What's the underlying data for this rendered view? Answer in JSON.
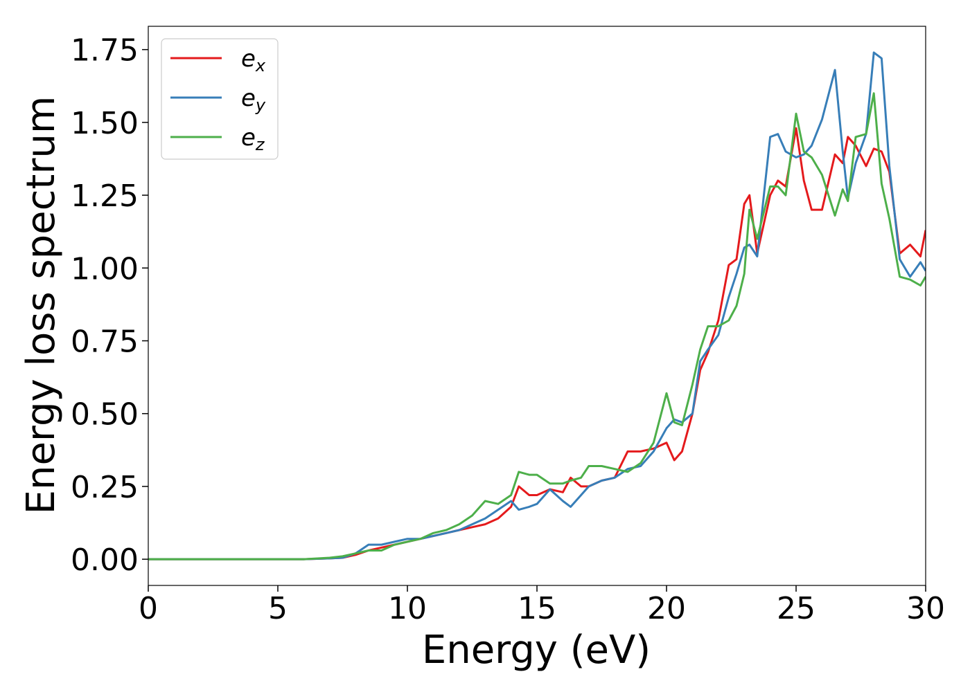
{
  "chart_data": {
    "type": "line",
    "xlabel": "Energy (eV)",
    "ylabel": "Energy loss spectrum",
    "xlim": [
      0,
      30
    ],
    "ylim": [
      -0.09,
      1.83
    ],
    "xticks": [
      "0",
      "5",
      "10",
      "15",
      "20",
      "25",
      "30"
    ],
    "yticks": [
      "0.00",
      "0.25",
      "0.50",
      "0.75",
      "1.00",
      "1.25",
      "1.50",
      "1.75"
    ],
    "grid": false,
    "legend_position": "upper-left",
    "series": [
      {
        "name": "e",
        "subscript": "x",
        "color": "#e41a1c",
        "points": [
          [
            0,
            0
          ],
          [
            6,
            0
          ],
          [
            7,
            0.003
          ],
          [
            7.5,
            0.005
          ],
          [
            8,
            0.015
          ],
          [
            8.5,
            0.03
          ],
          [
            9,
            0.04
          ],
          [
            9.5,
            0.05
          ],
          [
            10,
            0.06
          ],
          [
            10.5,
            0.07
          ],
          [
            11,
            0.08
          ],
          [
            11.5,
            0.09
          ],
          [
            12,
            0.1
          ],
          [
            12.5,
            0.11
          ],
          [
            13,
            0.12
          ],
          [
            13.5,
            0.14
          ],
          [
            14,
            0.18
          ],
          [
            14.3,
            0.25
          ],
          [
            14.7,
            0.22
          ],
          [
            15,
            0.22
          ],
          [
            15.5,
            0.24
          ],
          [
            16,
            0.23
          ],
          [
            16.3,
            0.28
          ],
          [
            16.7,
            0.25
          ],
          [
            17,
            0.25
          ],
          [
            17.5,
            0.27
          ],
          [
            18,
            0.28
          ],
          [
            18.5,
            0.37
          ],
          [
            19,
            0.37
          ],
          [
            19.5,
            0.38
          ],
          [
            20,
            0.4
          ],
          [
            20.3,
            0.34
          ],
          [
            20.6,
            0.37
          ],
          [
            21,
            0.5
          ],
          [
            21.3,
            0.65
          ],
          [
            21.6,
            0.71
          ],
          [
            22,
            0.82
          ],
          [
            22.4,
            1.01
          ],
          [
            22.7,
            1.03
          ],
          [
            23,
            1.22
          ],
          [
            23.2,
            1.25
          ],
          [
            23.5,
            1.05
          ],
          [
            24,
            1.25
          ],
          [
            24.3,
            1.3
          ],
          [
            24.6,
            1.28
          ],
          [
            25,
            1.48
          ],
          [
            25.3,
            1.3
          ],
          [
            25.6,
            1.2
          ],
          [
            26,
            1.2
          ],
          [
            26.5,
            1.39
          ],
          [
            26.8,
            1.36
          ],
          [
            27,
            1.45
          ],
          [
            27.3,
            1.42
          ],
          [
            27.7,
            1.35
          ],
          [
            28,
            1.41
          ],
          [
            28.3,
            1.4
          ],
          [
            28.6,
            1.33
          ],
          [
            29,
            1.05
          ],
          [
            29.4,
            1.08
          ],
          [
            29.8,
            1.04
          ],
          [
            30,
            1.13
          ]
        ]
      },
      {
        "name": "e",
        "subscript": "y",
        "color": "#377eb8",
        "points": [
          [
            0,
            0
          ],
          [
            6,
            0
          ],
          [
            7,
            0.003
          ],
          [
            7.5,
            0.005
          ],
          [
            8,
            0.02
          ],
          [
            8.5,
            0.05
          ],
          [
            9,
            0.05
          ],
          [
            9.5,
            0.06
          ],
          [
            10,
            0.07
          ],
          [
            10.5,
            0.07
          ],
          [
            11,
            0.08
          ],
          [
            11.5,
            0.09
          ],
          [
            12,
            0.1
          ],
          [
            12.5,
            0.12
          ],
          [
            13,
            0.14
          ],
          [
            13.5,
            0.17
          ],
          [
            14,
            0.2
          ],
          [
            14.3,
            0.17
          ],
          [
            14.7,
            0.18
          ],
          [
            15,
            0.19
          ],
          [
            15.5,
            0.24
          ],
          [
            16,
            0.2
          ],
          [
            16.3,
            0.18
          ],
          [
            16.7,
            0.22
          ],
          [
            17,
            0.25
          ],
          [
            17.5,
            0.27
          ],
          [
            18,
            0.28
          ],
          [
            18.5,
            0.31
          ],
          [
            19,
            0.32
          ],
          [
            19.5,
            0.37
          ],
          [
            20,
            0.45
          ],
          [
            20.3,
            0.48
          ],
          [
            20.6,
            0.47
          ],
          [
            21,
            0.5
          ],
          [
            21.3,
            0.68
          ],
          [
            21.6,
            0.72
          ],
          [
            22,
            0.77
          ],
          [
            22.4,
            0.9
          ],
          [
            22.7,
            0.98
          ],
          [
            23,
            1.07
          ],
          [
            23.2,
            1.08
          ],
          [
            23.5,
            1.04
          ],
          [
            24,
            1.45
          ],
          [
            24.3,
            1.46
          ],
          [
            24.6,
            1.4
          ],
          [
            25,
            1.38
          ],
          [
            25.3,
            1.39
          ],
          [
            25.6,
            1.42
          ],
          [
            26,
            1.51
          ],
          [
            26.5,
            1.68
          ],
          [
            26.8,
            1.4
          ],
          [
            27,
            1.24
          ],
          [
            27.3,
            1.36
          ],
          [
            27.7,
            1.46
          ],
          [
            28,
            1.74
          ],
          [
            28.3,
            1.72
          ],
          [
            28.6,
            1.35
          ],
          [
            29,
            1.03
          ],
          [
            29.4,
            0.97
          ],
          [
            29.8,
            1.02
          ],
          [
            30,
            0.99
          ]
        ]
      },
      {
        "name": "e",
        "subscript": "z",
        "color": "#4daf4a",
        "points": [
          [
            0,
            0
          ],
          [
            6,
            0
          ],
          [
            7,
            0.005
          ],
          [
            7.5,
            0.01
          ],
          [
            8,
            0.02
          ],
          [
            8.5,
            0.03
          ],
          [
            9,
            0.03
          ],
          [
            9.5,
            0.05
          ],
          [
            10,
            0.06
          ],
          [
            10.5,
            0.07
          ],
          [
            11,
            0.09
          ],
          [
            11.5,
            0.1
          ],
          [
            12,
            0.12
          ],
          [
            12.5,
            0.15
          ],
          [
            13,
            0.2
          ],
          [
            13.5,
            0.19
          ],
          [
            14,
            0.22
          ],
          [
            14.3,
            0.3
          ],
          [
            14.7,
            0.29
          ],
          [
            15,
            0.29
          ],
          [
            15.5,
            0.26
          ],
          [
            16,
            0.26
          ],
          [
            16.3,
            0.27
          ],
          [
            16.7,
            0.28
          ],
          [
            17,
            0.32
          ],
          [
            17.5,
            0.32
          ],
          [
            18,
            0.31
          ],
          [
            18.5,
            0.3
          ],
          [
            19,
            0.33
          ],
          [
            19.5,
            0.4
          ],
          [
            20,
            0.57
          ],
          [
            20.3,
            0.47
          ],
          [
            20.6,
            0.46
          ],
          [
            21,
            0.6
          ],
          [
            21.3,
            0.72
          ],
          [
            21.6,
            0.8
          ],
          [
            22,
            0.8
          ],
          [
            22.4,
            0.82
          ],
          [
            22.7,
            0.87
          ],
          [
            23,
            0.98
          ],
          [
            23.2,
            1.2
          ],
          [
            23.5,
            1.1
          ],
          [
            24,
            1.28
          ],
          [
            24.3,
            1.28
          ],
          [
            24.6,
            1.25
          ],
          [
            25,
            1.53
          ],
          [
            25.3,
            1.4
          ],
          [
            25.6,
            1.38
          ],
          [
            26,
            1.32
          ],
          [
            26.5,
            1.18
          ],
          [
            26.8,
            1.27
          ],
          [
            27,
            1.23
          ],
          [
            27.3,
            1.45
          ],
          [
            27.7,
            1.46
          ],
          [
            28,
            1.6
          ],
          [
            28.3,
            1.29
          ],
          [
            28.6,
            1.17
          ],
          [
            29,
            0.97
          ],
          [
            29.4,
            0.96
          ],
          [
            29.8,
            0.94
          ],
          [
            30,
            0.97
          ]
        ]
      }
    ]
  }
}
